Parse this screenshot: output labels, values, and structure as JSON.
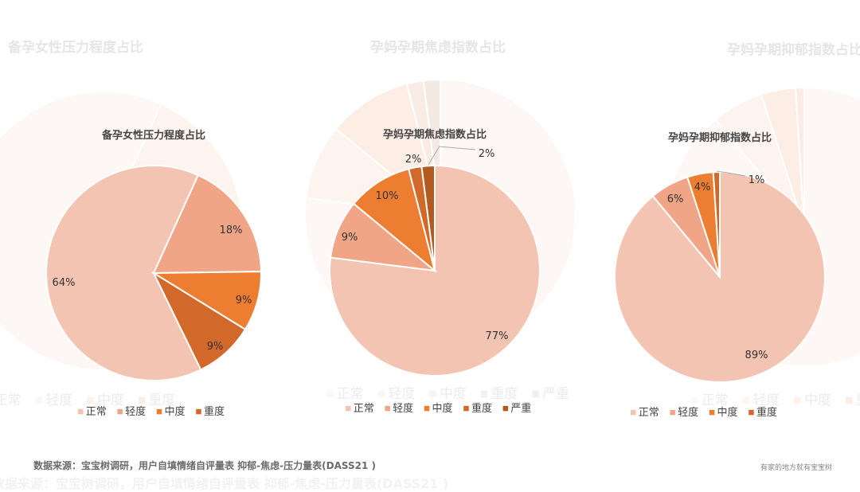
{
  "colors": {
    "正常": "#f4c4b3",
    "轻度": "#f0a586",
    "中度": "#ed7d31",
    "重度": "#d2692a",
    "严重": "#b35a1f"
  },
  "chart_data": [
    {
      "type": "pie",
      "title": "备孕女性压力程度占比",
      "categories": [
        "正常",
        "轻度",
        "中度",
        "重度"
      ],
      "values": [
        64,
        18,
        9,
        9
      ],
      "labels": [
        "64%",
        "18%",
        "9%",
        "9%"
      ],
      "legend": "bottom"
    },
    {
      "type": "pie",
      "title": "孕妈孕期焦虑指数占比",
      "categories": [
        "正常",
        "轻度",
        "中度",
        "重度",
        "严重"
      ],
      "values": [
        77,
        9,
        10,
        2,
        2
      ],
      "labels": [
        "77%",
        "9%",
        "10%",
        "2%",
        "2%"
      ],
      "legend": "bottom"
    },
    {
      "type": "pie",
      "title": "孕妈孕期抑郁指数占比",
      "categories": [
        "正常",
        "轻度",
        "中度",
        "重度"
      ],
      "values": [
        89,
        6,
        4,
        1
      ],
      "labels": [
        "89%",
        "6%",
        "4%",
        "1%"
      ],
      "legend": "bottom"
    }
  ],
  "footer": {
    "source": "数据来源：宝宝树调研，用户自填情绪自评量表 抑郁-焦虑-压力量表(DASS21 )",
    "brand": "有家的地方就有宝宝树"
  }
}
